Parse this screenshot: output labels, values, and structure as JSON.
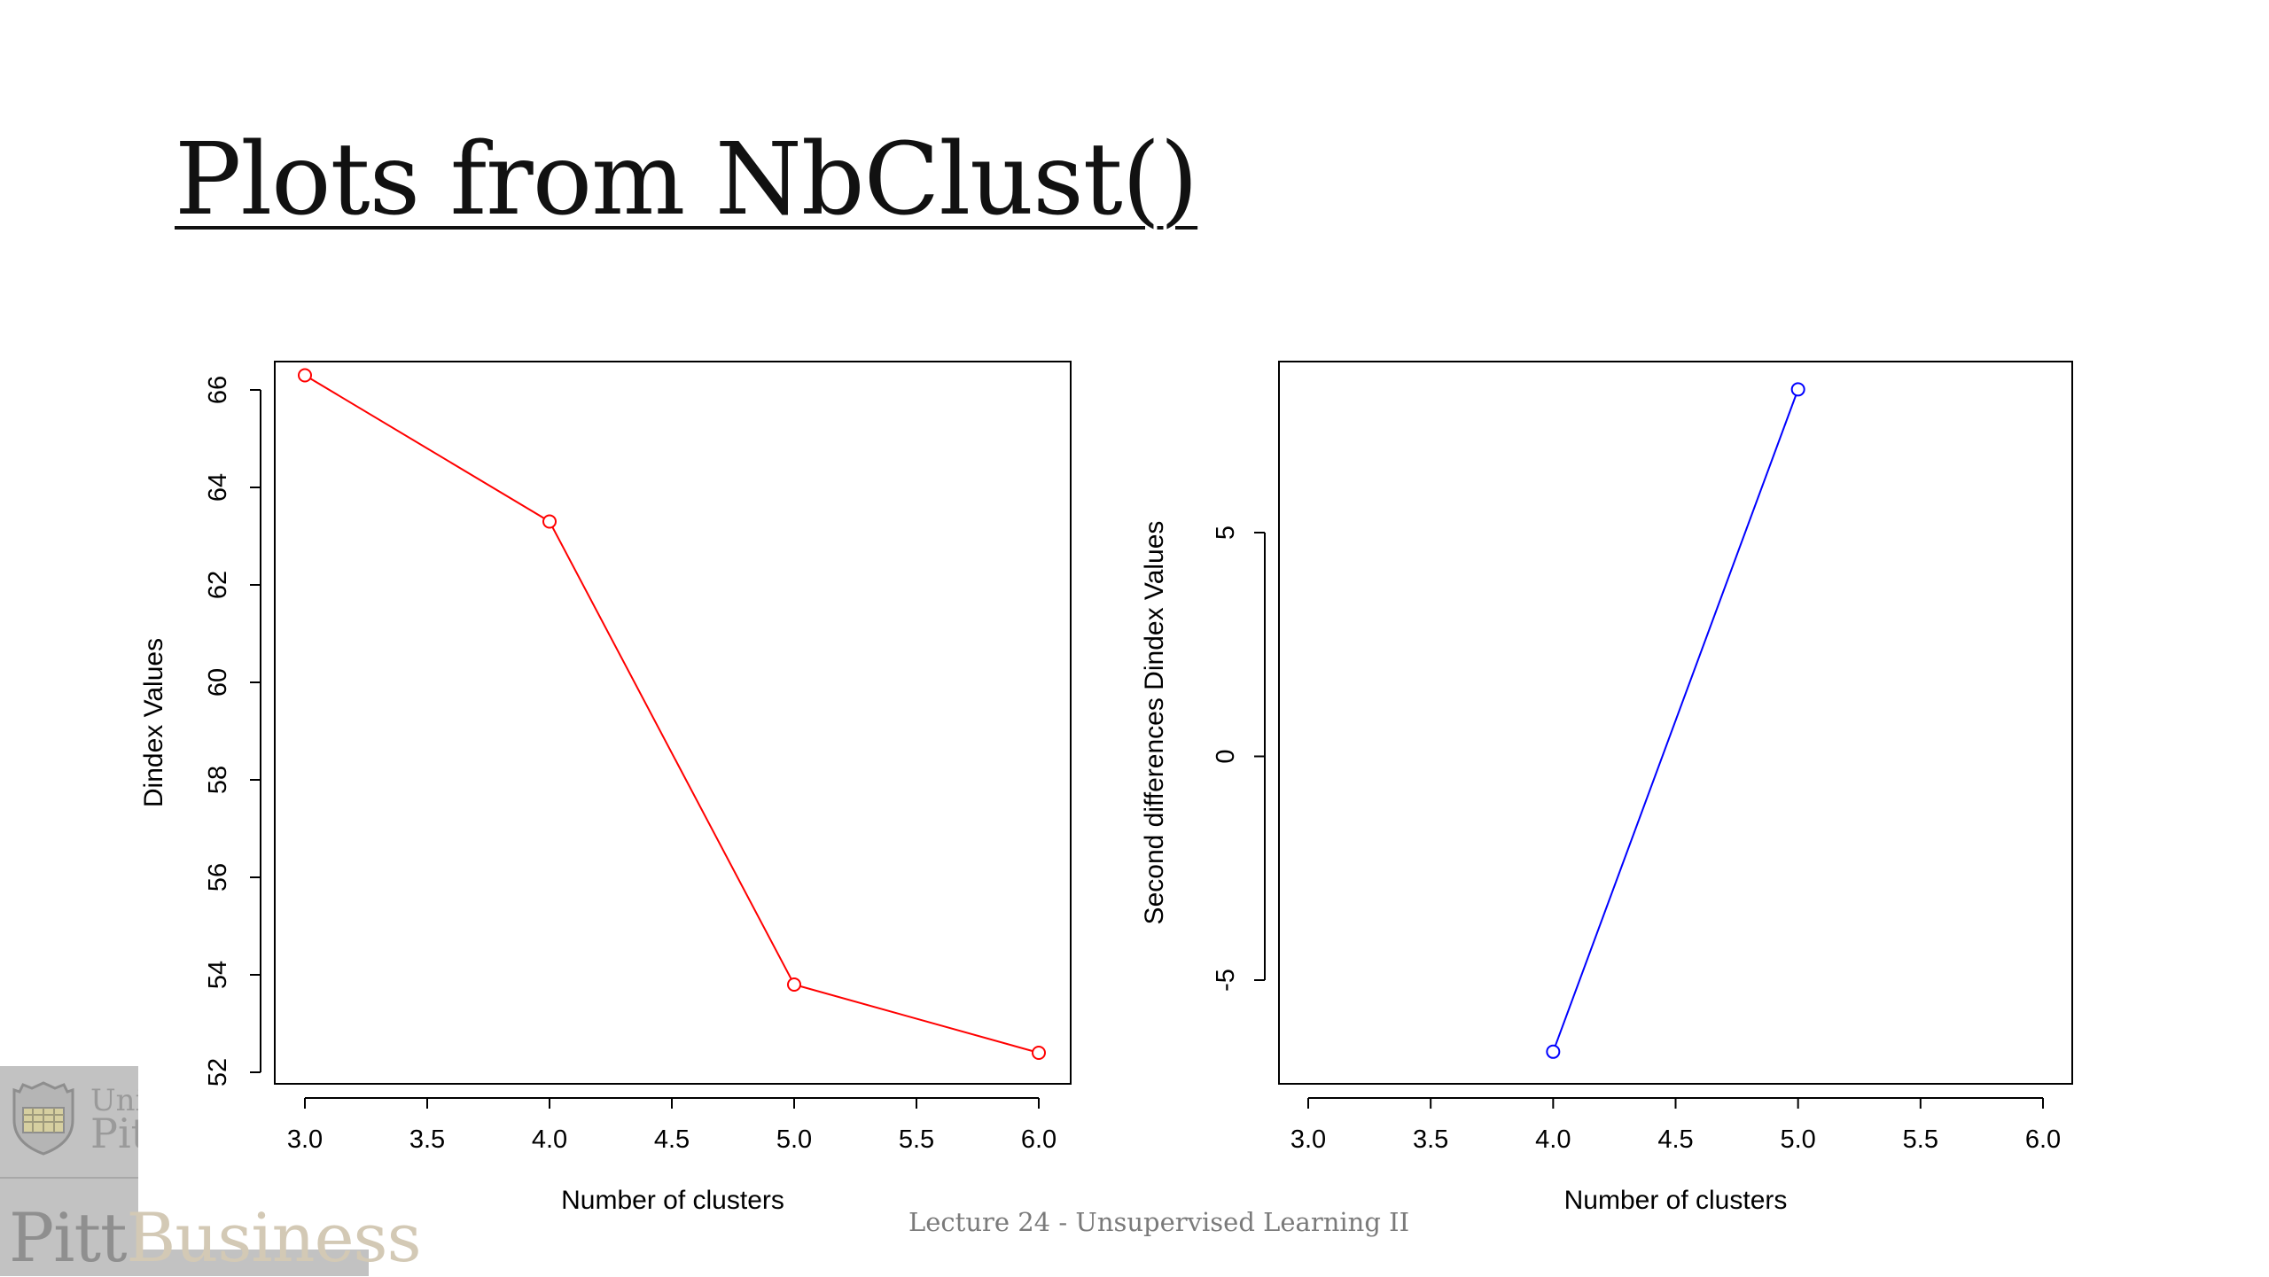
{
  "slide": {
    "title": "Plots from NbClust()",
    "footer": "Lecture 24 - Unsupervised Learning II"
  },
  "logo": {
    "univ_text": "Univ",
    "pitt_text": "Pitt",
    "pitt_business_1": "Pitt",
    "pitt_business_2": "Business"
  },
  "colors": {
    "series_left": "#ff0000",
    "series_right": "#0000ff",
    "axis": "#000000"
  },
  "chart_data": [
    {
      "type": "line",
      "xlabel": "Number of clusters",
      "ylabel": "Dindex Values",
      "x": [
        3,
        4,
        5,
        6
      ],
      "series": [
        {
          "values": [
            66.3,
            63.3,
            53.8,
            52.4
          ]
        }
      ],
      "xlim": [
        3,
        6
      ],
      "ylim": [
        52,
        66
      ],
      "xticks": [
        "3.0",
        "3.5",
        "4.0",
        "4.5",
        "5.0",
        "5.5",
        "6.0"
      ],
      "yticks": [
        "52",
        "54",
        "56",
        "58",
        "60",
        "62",
        "64",
        "66"
      ],
      "grid": false
    },
    {
      "type": "line",
      "xlabel": "Number of clusters",
      "ylabel": "Second differences Dindex Values",
      "x": [
        4,
        5
      ],
      "series": [
        {
          "values": [
            -6.6,
            8.2
          ]
        }
      ],
      "xlim": [
        3,
        6
      ],
      "ylim": [
        -5,
        5
      ],
      "xticks": [
        "3.0",
        "3.5",
        "4.0",
        "4.5",
        "5.0",
        "5.5",
        "6.0"
      ],
      "yticks": [
        "-5",
        "0",
        "5"
      ],
      "grid": false
    }
  ]
}
